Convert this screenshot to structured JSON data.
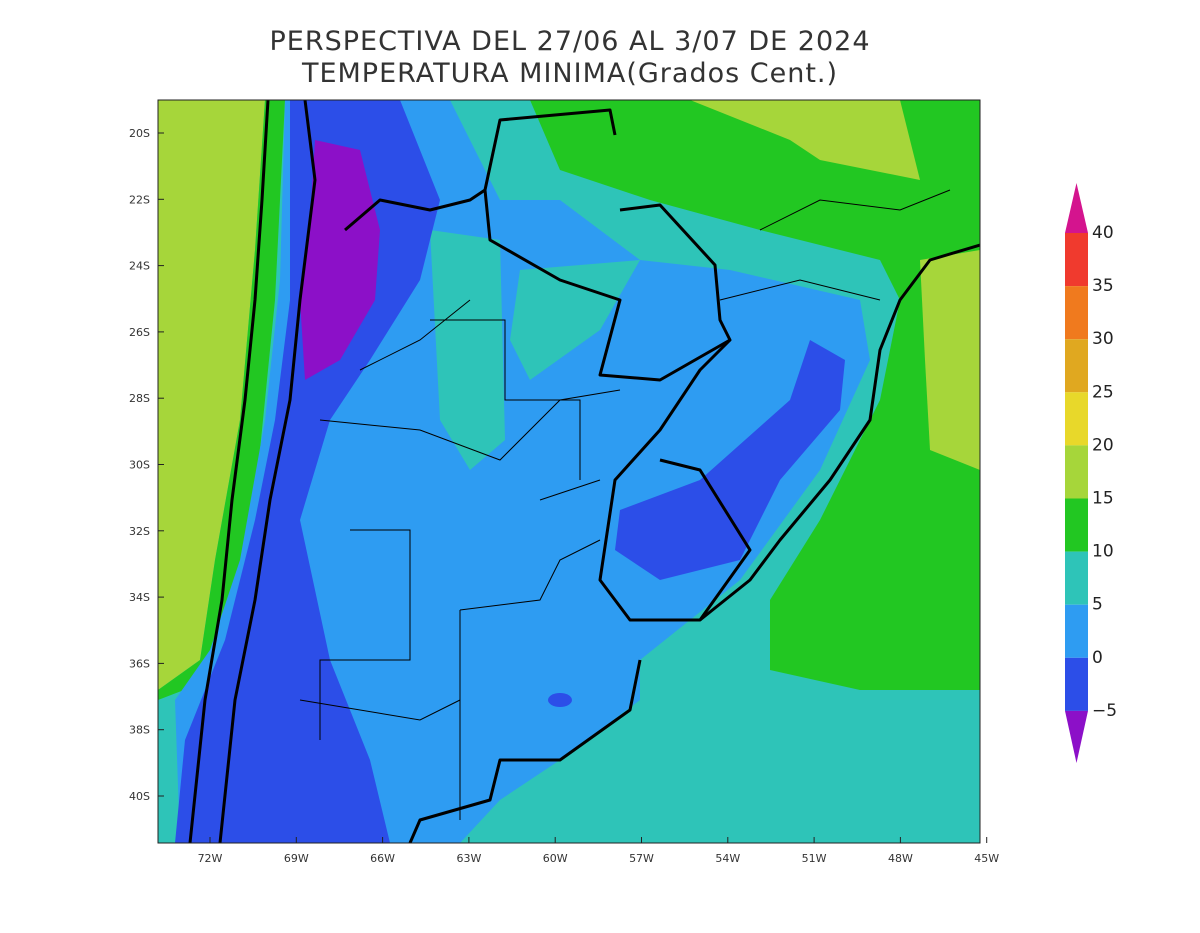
{
  "header": {
    "title": "PERSPECTIVA DEL 27/06 AL 3/07 DE 2024",
    "subtitle": "TEMPERATURA MINIMA(Grados Cent.)"
  },
  "map": {
    "lat_labels": [
      "20S",
      "22S",
      "24S",
      "26S",
      "28S",
      "30S",
      "32S",
      "34S",
      "36S",
      "38S",
      "40S"
    ],
    "lon_labels": [
      "72W",
      "69W",
      "66W",
      "63W",
      "60W",
      "57W",
      "54W",
      "51W",
      "48W",
      "45W"
    ]
  },
  "colorbar": {
    "labels": [
      "40",
      "35",
      "30",
      "25",
      "20",
      "15",
      "10",
      "5",
      "0",
      "−5"
    ],
    "colors": [
      "#d4148e",
      "#f03a2e",
      "#f07a1e",
      "#e0a820",
      "#e8d82a",
      "#a6d63a",
      "#22c722",
      "#2ec4b8",
      "#2e9cf2",
      "#2c4ee8",
      "#8c10c8"
    ]
  }
}
